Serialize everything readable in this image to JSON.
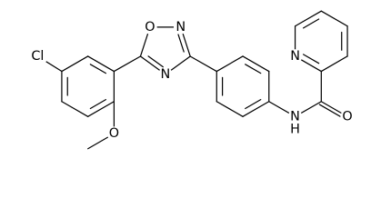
{
  "atom_labels": [
    "Cl",
    "O",
    "O",
    "N",
    "N",
    "N",
    "H",
    "O",
    "N"
  ]
}
